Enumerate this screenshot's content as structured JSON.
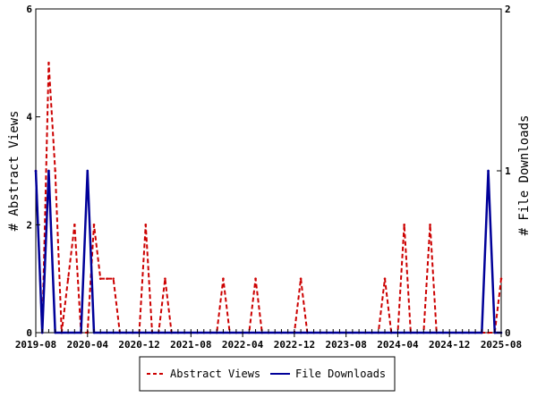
{
  "chart_data": {
    "type": "line",
    "title": "",
    "x_tick_labels": [
      "2019-08",
      "2020-04",
      "2020-12",
      "2021-08",
      "2022-04",
      "2022-12",
      "2023-08",
      "2024-04",
      "2024-12",
      "2025-08"
    ],
    "ylabel_left": "# Abstract Views",
    "ylabel_right": "# File Downloads",
    "ylim_left": [
      0,
      6
    ],
    "ylim_right": [
      0,
      2
    ],
    "yticks_left": [
      "0",
      "2",
      "4",
      "6"
    ],
    "yticks_right": [
      "0",
      "1",
      "2"
    ],
    "grid": false,
    "legend_position": "bottom",
    "x_months": [
      "2019-08",
      "2019-09",
      "2019-10",
      "2019-11",
      "2019-12",
      "2020-01",
      "2020-02",
      "2020-03",
      "2020-04",
      "2020-05",
      "2020-06",
      "2020-07",
      "2020-08",
      "2020-09",
      "2020-10",
      "2020-11",
      "2020-12",
      "2021-01",
      "2021-02",
      "2021-03",
      "2021-04",
      "2021-05",
      "2021-06",
      "2021-07",
      "2021-08",
      "2021-09",
      "2021-10",
      "2021-11",
      "2021-12",
      "2022-01",
      "2022-02",
      "2022-03",
      "2022-04",
      "2022-05",
      "2022-06",
      "2022-07",
      "2022-08",
      "2022-09",
      "2022-10",
      "2022-11",
      "2022-12",
      "2023-01",
      "2023-02",
      "2023-03",
      "2023-04",
      "2023-05",
      "2023-06",
      "2023-07",
      "2023-08",
      "2023-09",
      "2023-10",
      "2023-11",
      "2023-12",
      "2024-01",
      "2024-02",
      "2024-03",
      "2024-04",
      "2024-05",
      "2024-06",
      "2024-07",
      "2024-08",
      "2024-09",
      "2024-10",
      "2024-11",
      "2024-12",
      "2025-01",
      "2025-02",
      "2025-03",
      "2025-04",
      "2025-05",
      "2025-06",
      "2025-07",
      "2025-08"
    ],
    "series": [
      {
        "name": "Abstract Views",
        "axis": "left",
        "color": "#cc0000",
        "dash": true,
        "values": [
          3,
          0,
          5,
          3,
          0,
          1,
          2,
          0,
          0,
          2,
          1,
          1,
          1,
          0,
          0,
          0,
          0,
          2,
          0,
          0,
          1,
          0,
          0,
          0,
          0,
          0,
          0,
          0,
          0,
          1,
          0,
          0,
          0,
          0,
          1,
          0,
          0,
          0,
          0,
          0,
          0,
          1,
          0,
          0,
          0,
          0,
          0,
          0,
          0,
          0,
          0,
          0,
          0,
          0,
          1,
          0,
          0,
          2,
          0,
          0,
          0,
          2,
          0,
          0,
          0,
          0,
          0,
          0,
          0,
          0,
          0,
          0,
          1
        ]
      },
      {
        "name": "File Downloads",
        "axis": "right",
        "color": "#000099",
        "dash": false,
        "values": [
          1,
          0,
          1,
          0,
          0,
          0,
          0,
          0,
          1,
          0,
          0,
          0,
          0,
          0,
          0,
          0,
          0,
          0,
          0,
          0,
          0,
          0,
          0,
          0,
          0,
          0,
          0,
          0,
          0,
          0,
          0,
          0,
          0,
          0,
          0,
          0,
          0,
          0,
          0,
          0,
          0,
          0,
          0,
          0,
          0,
          0,
          0,
          0,
          0,
          0,
          0,
          0,
          0,
          0,
          0,
          0,
          0,
          0,
          0,
          0,
          0,
          0,
          0,
          0,
          0,
          0,
          0,
          0,
          0,
          0,
          1,
          0,
          0
        ]
      }
    ]
  }
}
